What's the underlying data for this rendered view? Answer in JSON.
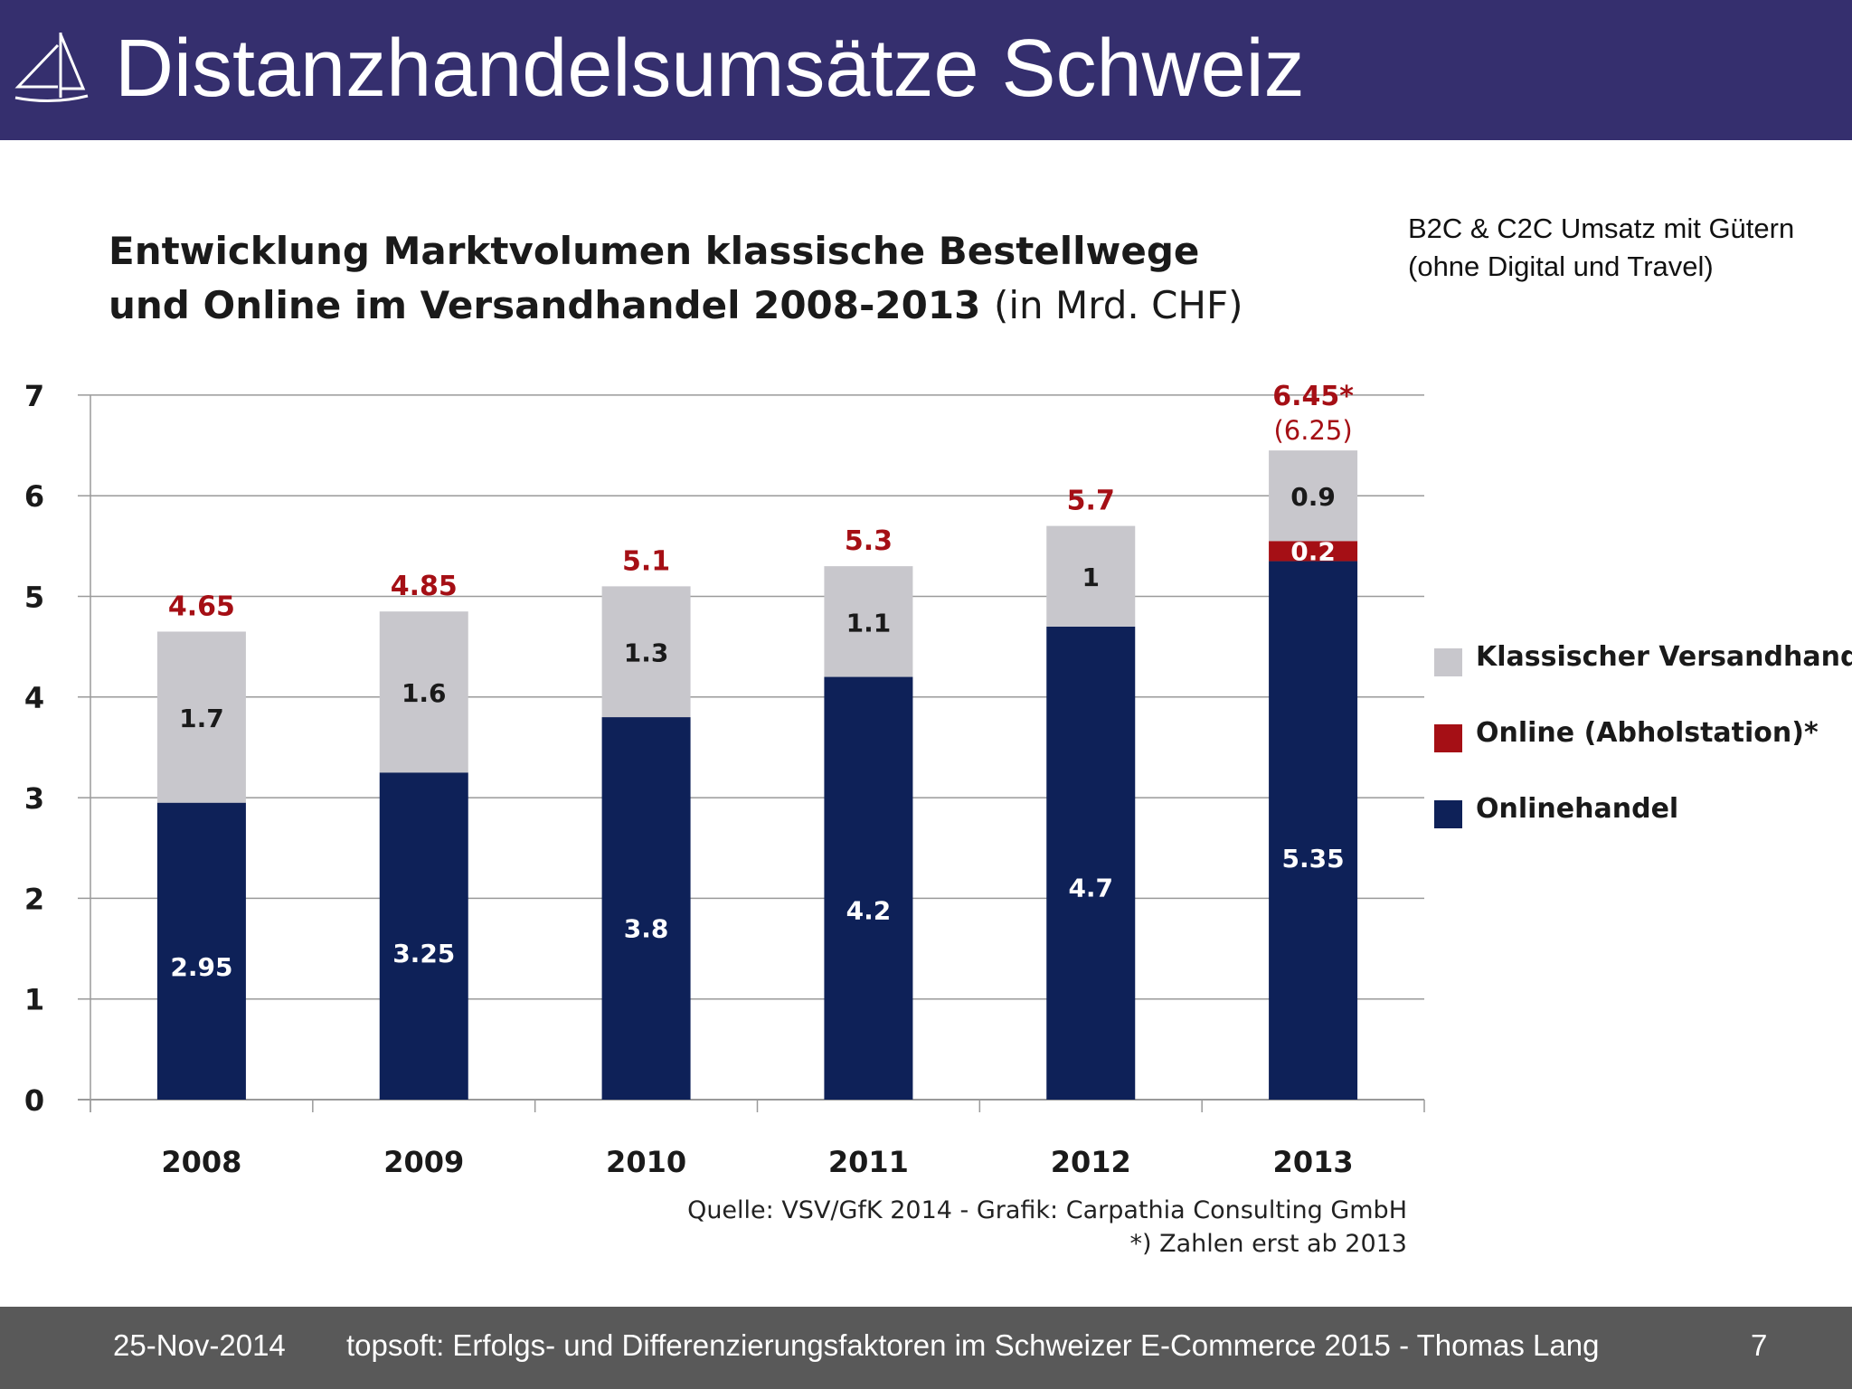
{
  "slide": {
    "title": "Distanzhandelsumsätze Schweiz",
    "note_lines": [
      "B2C & C2C Umsatz mit Gütern",
      "(ohne Digital und Travel)"
    ]
  },
  "footer": {
    "date": "25-Nov-2014",
    "text": "topsoft: Erfolgs- und Differenzierungsfaktoren im Schweizer E-Commerce 2015 - Thomas Lang",
    "page": "7"
  },
  "colors": {
    "header_bg": "#352f6e",
    "footer_bg": "#595959",
    "klassisch": "#c8c7cc",
    "abholstation": "#a50f15",
    "onlinehandel": "#0e2158",
    "total_label": "#a50f15"
  },
  "chart_data": {
    "type": "bar",
    "stacked": true,
    "title_bold_lines": [
      "Entwicklung Marktvolumen klassische Bestellwege",
      "und Online im Versandhandel 2008-2013"
    ],
    "title_unit": "(in Mrd. CHF)",
    "categories": [
      "2008",
      "2009",
      "2010",
      "2011",
      "2012",
      "2013"
    ],
    "series": [
      {
        "name": "Onlinehandel",
        "values": [
          2.95,
          3.25,
          3.8,
          4.2,
          4.7,
          5.35
        ],
        "labels": [
          "2.95",
          "3.25",
          "3.8",
          "4.2",
          "4.7",
          "5.35"
        ]
      },
      {
        "name": "Online (Abholstation)*",
        "values": [
          0,
          0,
          0,
          0,
          0,
          0.2
        ],
        "labels": [
          "",
          "",
          "",
          "",
          "",
          "0.2"
        ]
      },
      {
        "name": "Klassischer Versandhandel",
        "values": [
          1.7,
          1.6,
          1.3,
          1.1,
          1,
          0.9
        ],
        "labels": [
          "1.7",
          "1.6",
          "1.3",
          "1.1",
          "1",
          "0.9"
        ]
      }
    ],
    "totals": [
      "4.65",
      "4.85",
      "5.1",
      "5.3",
      "5.7",
      "6.45*"
    ],
    "totals_secondary": [
      "",
      "",
      "",
      "",
      "",
      "(6.25)"
    ],
    "legend_order": [
      "Klassischer Versandhandel",
      "Online (Abholstation)*",
      "Onlinehandel"
    ],
    "legend_position": "right",
    "ylim": [
      0,
      7
    ],
    "yticks": [
      "0",
      "1",
      "2",
      "3",
      "4",
      "5",
      "6",
      "7"
    ],
    "grid": true,
    "xlabel": "",
    "ylabel": "",
    "source_lines": [
      "Quelle: VSV/GfK 2014 - Grafik: Carpathia Consulting GmbH",
      "*) Zahlen erst ab 2013"
    ]
  }
}
